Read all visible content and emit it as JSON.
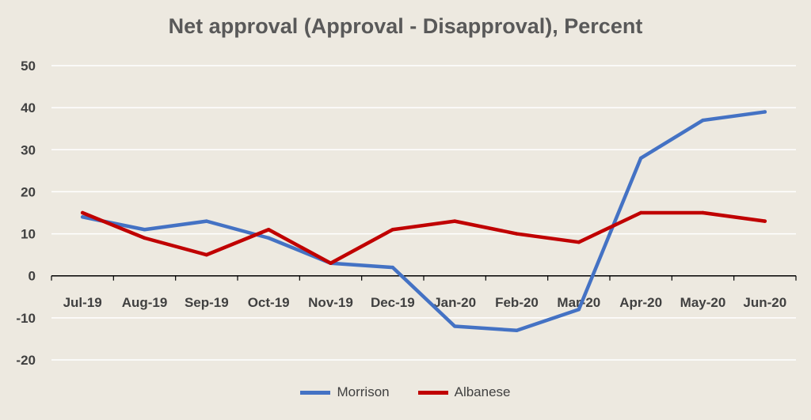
{
  "chart_data": {
    "type": "line",
    "title": "Net approval (Approval - Disapproval), Percent",
    "xlabel": "",
    "ylabel": "",
    "categories": [
      "Jul-19",
      "Aug-19",
      "Sep-19",
      "Oct-19",
      "Nov-19",
      "Dec-19",
      "Jan-20",
      "Feb-20",
      "Mar-20",
      "Apr-20",
      "May-20",
      "Jun-20"
    ],
    "ylim": [
      -20,
      50
    ],
    "yticks": [
      -20,
      -10,
      0,
      10,
      20,
      30,
      40,
      50
    ],
    "grid": true,
    "legend": "bottom",
    "series": [
      {
        "name": "Morrison",
        "color": "#4472c4",
        "values": [
          14,
          11,
          13,
          9,
          3,
          2,
          -12,
          -13,
          -8,
          28,
          37,
          39
        ]
      },
      {
        "name": "Albanese",
        "color": "#c00000",
        "values": [
          15,
          9,
          5,
          11,
          3,
          11,
          13,
          10,
          8,
          15,
          15,
          13
        ]
      }
    ]
  }
}
